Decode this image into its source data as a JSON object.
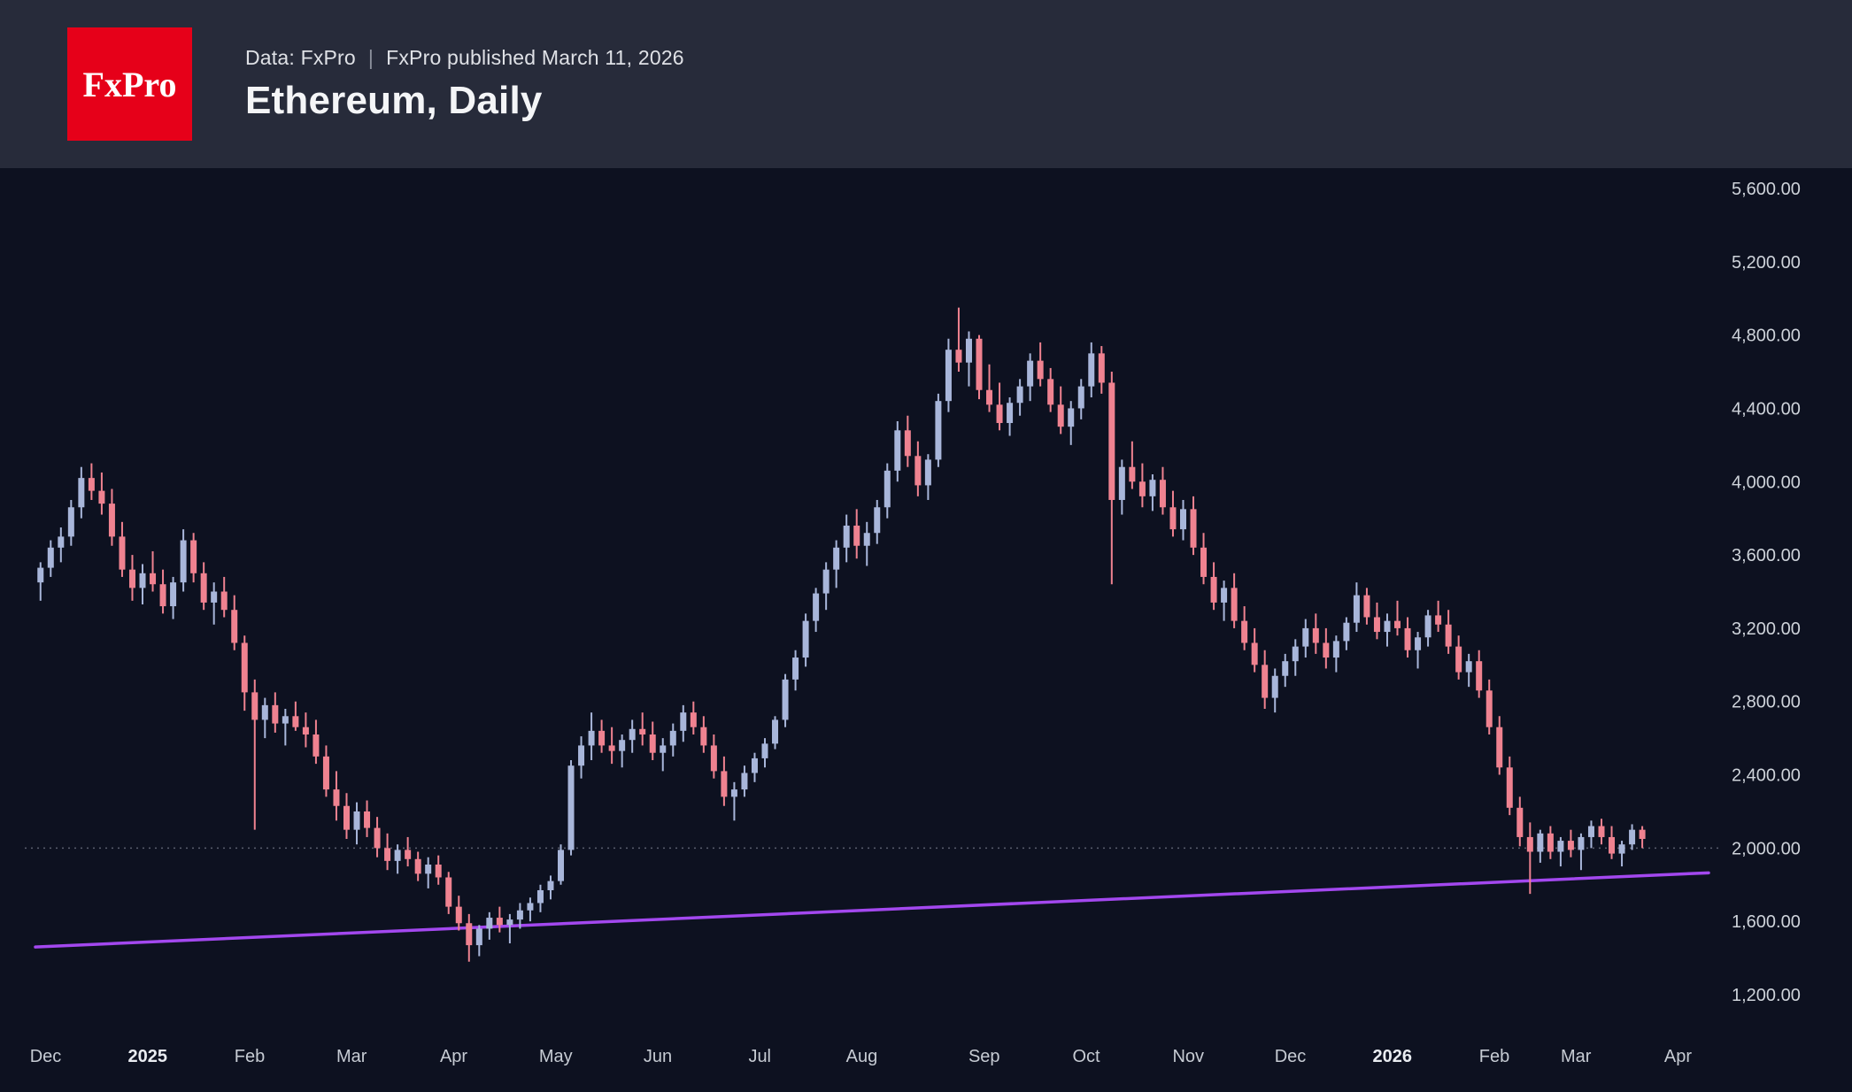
{
  "header": {
    "logo_text": "FxPro",
    "data_source": "Data: FxPro",
    "separator": "|",
    "published": "FxPro published March 11, 2026",
    "title": "Ethereum, Daily"
  },
  "chart_data": {
    "type": "candlestick",
    "symbol": "Ethereum",
    "timeframe": "Daily",
    "title": "Ethereum, Daily",
    "y_axis": {
      "min": 1200,
      "max": 5600,
      "step": 400,
      "tick_labels": [
        "5,600.00",
        "5,200.00",
        "4,800.00",
        "4,400.00",
        "4,000.00",
        "3,600.00",
        "3,200.00",
        "2,800.00",
        "2,400.00",
        "2,000.00",
        "1,600.00",
        "1,200.00"
      ]
    },
    "x_labels": [
      {
        "label": "Dec",
        "slot": 0,
        "bold": false
      },
      {
        "label": "2025",
        "slot": 10,
        "bold": true
      },
      {
        "label": "Feb",
        "slot": 20,
        "bold": false
      },
      {
        "label": "Mar",
        "slot": 30,
        "bold": false
      },
      {
        "label": "Apr",
        "slot": 40,
        "bold": false
      },
      {
        "label": "May",
        "slot": 50,
        "bold": false
      },
      {
        "label": "Jun",
        "slot": 60,
        "bold": false
      },
      {
        "label": "Jul",
        "slot": 70,
        "bold": false
      },
      {
        "label": "Aug",
        "slot": 80,
        "bold": false
      },
      {
        "label": "Sep",
        "slot": 92,
        "bold": false
      },
      {
        "label": "Oct",
        "slot": 102,
        "bold": false
      },
      {
        "label": "Nov",
        "slot": 112,
        "bold": false
      },
      {
        "label": "Dec",
        "slot": 122,
        "bold": false
      },
      {
        "label": "2026",
        "slot": 132,
        "bold": true
      },
      {
        "label": "Feb",
        "slot": 142,
        "bold": false
      },
      {
        "label": "Mar",
        "slot": 150,
        "bold": false
      },
      {
        "label": "Apr",
        "slot": 160,
        "bold": false
      }
    ],
    "axis_slots": 164,
    "dotted_level": 2000,
    "trendline": {
      "from_value": 1460,
      "to_value": 1865
    },
    "colors": {
      "up": "#a8b6da",
      "down": "#ef8290",
      "trendline": "#a348ef",
      "dotted_line": "#5a5f6e",
      "background": "#0d1120",
      "header_background": "#272b3a",
      "logo_red": "#e60019",
      "axis_text": "#ced3da"
    },
    "candles": [
      [
        3450,
        3560,
        3350,
        3530
      ],
      [
        3530,
        3680,
        3480,
        3640
      ],
      [
        3640,
        3750,
        3560,
        3700
      ],
      [
        3700,
        3900,
        3650,
        3860
      ],
      [
        3860,
        4080,
        3800,
        4020
      ],
      [
        4020,
        4100,
        3900,
        3950
      ],
      [
        3950,
        4050,
        3820,
        3880
      ],
      [
        3880,
        3960,
        3650,
        3700
      ],
      [
        3700,
        3780,
        3480,
        3520
      ],
      [
        3520,
        3600,
        3350,
        3420
      ],
      [
        3420,
        3550,
        3330,
        3500
      ],
      [
        3500,
        3620,
        3400,
        3440
      ],
      [
        3440,
        3520,
        3280,
        3320
      ],
      [
        3320,
        3480,
        3250,
        3450
      ],
      [
        3450,
        3740,
        3400,
        3680
      ],
      [
        3680,
        3720,
        3450,
        3500
      ],
      [
        3500,
        3560,
        3300,
        3340
      ],
      [
        3340,
        3450,
        3220,
        3400
      ],
      [
        3400,
        3480,
        3260,
        3300
      ],
      [
        3300,
        3380,
        3080,
        3120
      ],
      [
        3120,
        3160,
        2750,
        2850
      ],
      [
        2850,
        2920,
        2100,
        2700
      ],
      [
        2700,
        2820,
        2600,
        2780
      ],
      [
        2780,
        2850,
        2630,
        2680
      ],
      [
        2680,
        2760,
        2560,
        2720
      ],
      [
        2720,
        2800,
        2640,
        2660
      ],
      [
        2660,
        2740,
        2550,
        2620
      ],
      [
        2620,
        2700,
        2460,
        2500
      ],
      [
        2500,
        2560,
        2280,
        2320
      ],
      [
        2320,
        2420,
        2150,
        2230
      ],
      [
        2230,
        2300,
        2050,
        2100
      ],
      [
        2100,
        2250,
        2020,
        2200
      ],
      [
        2200,
        2260,
        2060,
        2110
      ],
      [
        2110,
        2170,
        1950,
        2000
      ],
      [
        2000,
        2080,
        1880,
        1930
      ],
      [
        1930,
        2020,
        1860,
        1990
      ],
      [
        1990,
        2060,
        1900,
        1940
      ],
      [
        1940,
        1980,
        1820,
        1860
      ],
      [
        1860,
        1950,
        1780,
        1910
      ],
      [
        1910,
        1960,
        1800,
        1840
      ],
      [
        1840,
        1870,
        1640,
        1680
      ],
      [
        1680,
        1740,
        1550,
        1590
      ],
      [
        1590,
        1640,
        1380,
        1470
      ],
      [
        1470,
        1580,
        1410,
        1560
      ],
      [
        1560,
        1650,
        1500,
        1620
      ],
      [
        1620,
        1680,
        1540,
        1580
      ],
      [
        1580,
        1640,
        1480,
        1610
      ],
      [
        1610,
        1700,
        1560,
        1660
      ],
      [
        1660,
        1730,
        1600,
        1700
      ],
      [
        1700,
        1800,
        1650,
        1770
      ],
      [
        1770,
        1850,
        1720,
        1820
      ],
      [
        1820,
        2020,
        1800,
        1990
      ],
      [
        1990,
        2480,
        1960,
        2450
      ],
      [
        2450,
        2610,
        2380,
        2560
      ],
      [
        2560,
        2740,
        2480,
        2640
      ],
      [
        2640,
        2700,
        2520,
        2560
      ],
      [
        2560,
        2660,
        2460,
        2530
      ],
      [
        2530,
        2620,
        2440,
        2590
      ],
      [
        2590,
        2700,
        2520,
        2650
      ],
      [
        2650,
        2740,
        2560,
        2620
      ],
      [
        2620,
        2690,
        2480,
        2520
      ],
      [
        2520,
        2600,
        2420,
        2560
      ],
      [
        2560,
        2680,
        2500,
        2640
      ],
      [
        2640,
        2780,
        2580,
        2740
      ],
      [
        2740,
        2800,
        2620,
        2660
      ],
      [
        2660,
        2720,
        2520,
        2560
      ],
      [
        2560,
        2620,
        2380,
        2420
      ],
      [
        2420,
        2500,
        2230,
        2280
      ],
      [
        2280,
        2360,
        2150,
        2320
      ],
      [
        2320,
        2450,
        2280,
        2410
      ],
      [
        2410,
        2520,
        2360,
        2490
      ],
      [
        2490,
        2600,
        2440,
        2570
      ],
      [
        2570,
        2720,
        2540,
        2700
      ],
      [
        2700,
        2950,
        2660,
        2920
      ],
      [
        2920,
        3080,
        2860,
        3040
      ],
      [
        3040,
        3280,
        2990,
        3240
      ],
      [
        3240,
        3420,
        3180,
        3390
      ],
      [
        3390,
        3560,
        3300,
        3520
      ],
      [
        3520,
        3680,
        3420,
        3640
      ],
      [
        3640,
        3820,
        3560,
        3760
      ],
      [
        3760,
        3850,
        3580,
        3650
      ],
      [
        3650,
        3780,
        3540,
        3720
      ],
      [
        3720,
        3900,
        3660,
        3860
      ],
      [
        3860,
        4100,
        3800,
        4060
      ],
      [
        4060,
        4330,
        4000,
        4280
      ],
      [
        4280,
        4360,
        4080,
        4140
      ],
      [
        4140,
        4220,
        3920,
        3980
      ],
      [
        3980,
        4150,
        3900,
        4120
      ],
      [
        4120,
        4480,
        4080,
        4440
      ],
      [
        4440,
        4780,
        4380,
        4720
      ],
      [
        4720,
        4950,
        4600,
        4650
      ],
      [
        4650,
        4820,
        4520,
        4780
      ],
      [
        4780,
        4800,
        4450,
        4500
      ],
      [
        4500,
        4640,
        4380,
        4420
      ],
      [
        4420,
        4540,
        4280,
        4320
      ],
      [
        4320,
        4460,
        4250,
        4430
      ],
      [
        4430,
        4560,
        4360,
        4520
      ],
      [
        4520,
        4700,
        4440,
        4660
      ],
      [
        4660,
        4760,
        4520,
        4560
      ],
      [
        4560,
        4620,
        4380,
        4420
      ],
      [
        4420,
        4520,
        4260,
        4300
      ],
      [
        4300,
        4440,
        4200,
        4400
      ],
      [
        4400,
        4560,
        4340,
        4520
      ],
      [
        4520,
        4760,
        4460,
        4700
      ],
      [
        4700,
        4740,
        4480,
        4540
      ],
      [
        4540,
        4600,
        3440,
        3900
      ],
      [
        3900,
        4120,
        3820,
        4080
      ],
      [
        4080,
        4220,
        3960,
        4000
      ],
      [
        4000,
        4100,
        3860,
        3920
      ],
      [
        3920,
        4040,
        3840,
        4010
      ],
      [
        4010,
        4080,
        3820,
        3860
      ],
      [
        3860,
        3950,
        3700,
        3740
      ],
      [
        3740,
        3900,
        3680,
        3850
      ],
      [
        3850,
        3920,
        3600,
        3640
      ],
      [
        3640,
        3720,
        3440,
        3480
      ],
      [
        3480,
        3560,
        3300,
        3340
      ],
      [
        3340,
        3460,
        3240,
        3420
      ],
      [
        3420,
        3500,
        3200,
        3240
      ],
      [
        3240,
        3320,
        3080,
        3120
      ],
      [
        3120,
        3200,
        2960,
        3000
      ],
      [
        3000,
        3080,
        2760,
        2820
      ],
      [
        2820,
        2980,
        2740,
        2940
      ],
      [
        2940,
        3060,
        2880,
        3020
      ],
      [
        3020,
        3140,
        2940,
        3100
      ],
      [
        3100,
        3250,
        3040,
        3200
      ],
      [
        3200,
        3280,
        3060,
        3120
      ],
      [
        3120,
        3200,
        2980,
        3040
      ],
      [
        3040,
        3160,
        2960,
        3130
      ],
      [
        3130,
        3260,
        3080,
        3230
      ],
      [
        3230,
        3450,
        3180,
        3380
      ],
      [
        3380,
        3420,
        3220,
        3260
      ],
      [
        3260,
        3340,
        3140,
        3180
      ],
      [
        3180,
        3280,
        3100,
        3240
      ],
      [
        3240,
        3350,
        3160,
        3200
      ],
      [
        3200,
        3260,
        3040,
        3080
      ],
      [
        3080,
        3180,
        2980,
        3150
      ],
      [
        3150,
        3300,
        3100,
        3270
      ],
      [
        3270,
        3350,
        3180,
        3220
      ],
      [
        3220,
        3300,
        3060,
        3100
      ],
      [
        3100,
        3160,
        2920,
        2960
      ],
      [
        2960,
        3060,
        2880,
        3020
      ],
      [
        3020,
        3080,
        2820,
        2860
      ],
      [
        2860,
        2920,
        2620,
        2660
      ],
      [
        2660,
        2720,
        2400,
        2440
      ],
      [
        2440,
        2500,
        2180,
        2220
      ],
      [
        2220,
        2280,
        2010,
        2060
      ],
      [
        2060,
        2140,
        1750,
        1980
      ],
      [
        1980,
        2100,
        1920,
        2080
      ],
      [
        2080,
        2120,
        1940,
        1980
      ],
      [
        1980,
        2060,
        1900,
        2040
      ],
      [
        2040,
        2100,
        1950,
        1990
      ],
      [
        1990,
        2080,
        1880,
        2060
      ],
      [
        2060,
        2150,
        2000,
        2120
      ],
      [
        2120,
        2160,
        2020,
        2060
      ],
      [
        2060,
        2120,
        1940,
        1970
      ],
      [
        1970,
        2040,
        1900,
        2020
      ],
      [
        2020,
        2130,
        1990,
        2100
      ],
      [
        2100,
        2120,
        2000,
        2050
      ]
    ]
  }
}
